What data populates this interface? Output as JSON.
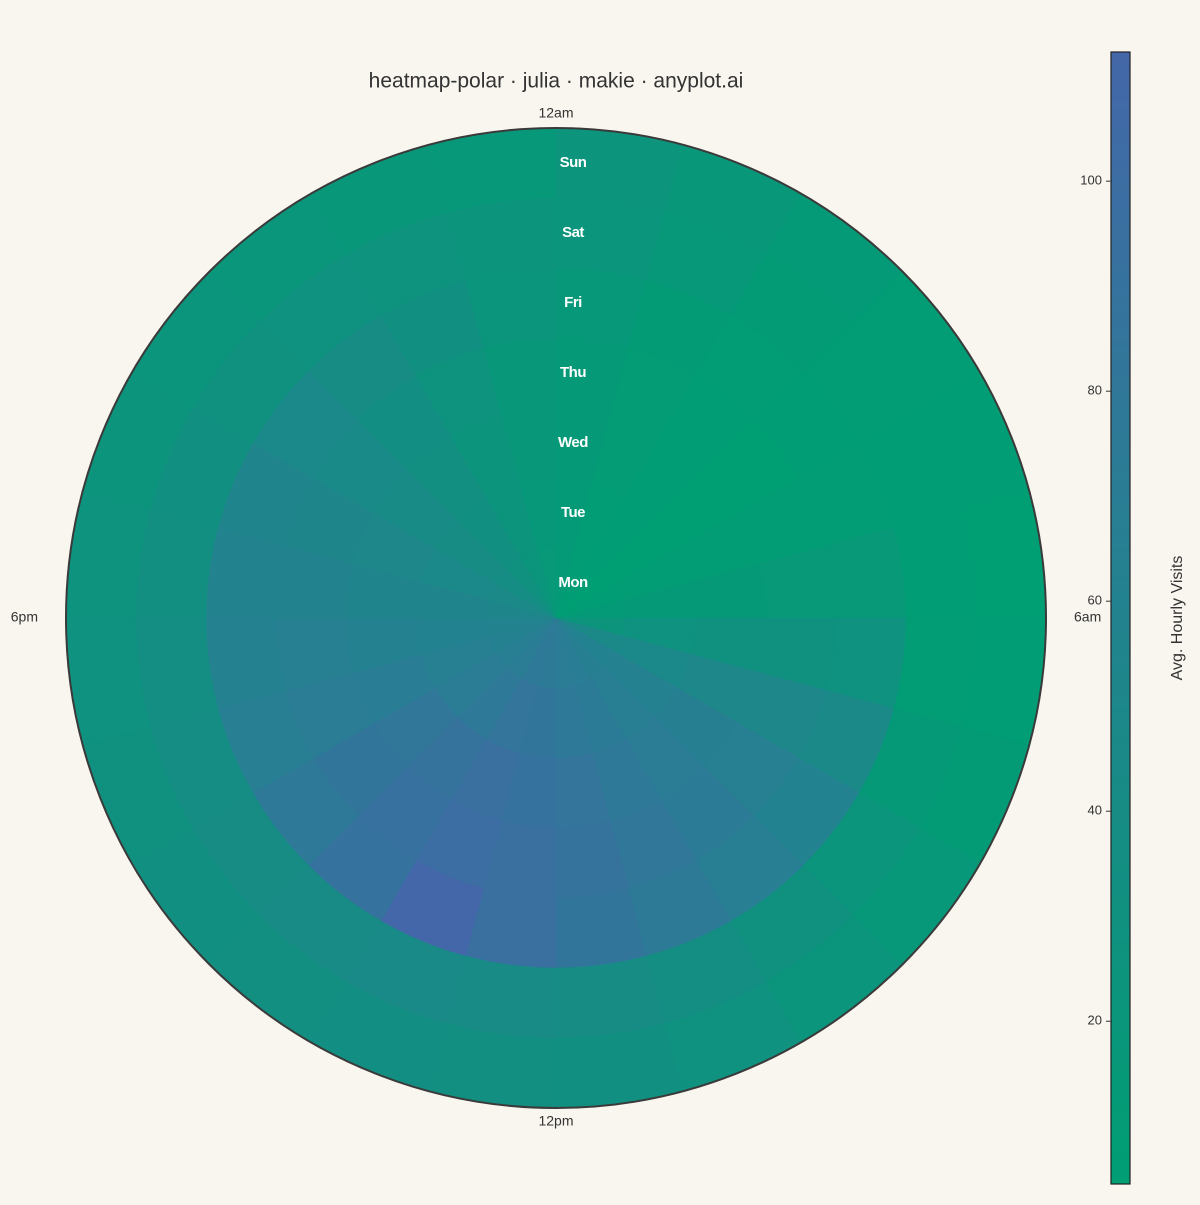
{
  "chart_data": {
    "type": "heatmap-polar",
    "title": "heatmap-polar · julia · makie · anyplot.ai",
    "categories": [
      "Mon",
      "Tue",
      "Wed",
      "Thu",
      "Fri",
      "Sat",
      "Sun"
    ],
    "xlim": [
      0,
      24
    ],
    "xticks": [
      {
        "value": 0,
        "label": "12am"
      },
      {
        "value": 6,
        "label": "6am"
      },
      {
        "value": 12,
        "label": "12pm"
      },
      {
        "value": 18,
        "label": "6pm"
      }
    ],
    "values": [
      [
        12,
        8,
        6,
        5,
        6,
        12,
        25,
        45,
        60,
        65,
        70,
        72,
        75,
        78,
        72,
        68,
        62,
        58,
        52,
        45,
        38,
        30,
        22,
        15
      ],
      [
        12,
        8,
        6,
        5,
        7,
        14,
        28,
        48,
        62,
        68,
        74,
        78,
        82,
        85,
        78,
        72,
        66,
        60,
        55,
        48,
        40,
        32,
        24,
        16
      ],
      [
        14,
        9,
        6,
        5,
        7,
        14,
        30,
        50,
        65,
        72,
        78,
        85,
        90,
        95,
        88,
        80,
        70,
        62,
        56,
        50,
        42,
        34,
        25,
        18
      ],
      [
        14,
        9,
        6,
        5,
        7,
        15,
        30,
        50,
        66,
        74,
        80,
        88,
        95,
        100,
        92,
        82,
        72,
        64,
        58,
        52,
        44,
        35,
        26,
        18
      ],
      [
        16,
        10,
        7,
        6,
        8,
        15,
        28,
        46,
        60,
        68,
        75,
        82,
        95,
        112,
        90,
        78,
        68,
        62,
        58,
        55,
        48,
        40,
        32,
        22
      ],
      [
        22,
        16,
        10,
        7,
        6,
        6,
        8,
        14,
        22,
        30,
        36,
        40,
        42,
        44,
        42,
        40,
        38,
        36,
        34,
        32,
        30,
        28,
        26,
        24
      ],
      [
        24,
        18,
        12,
        8,
        6,
        5,
        6,
        10,
        16,
        22,
        28,
        32,
        34,
        35,
        34,
        32,
        30,
        28,
        26,
        24,
        22,
        20,
        18,
        16
      ]
    ],
    "colormap": [
      "#009E73",
      "#4467A9"
    ],
    "clim": [
      4.5,
      112.3
    ],
    "cticks": [
      20,
      40,
      60,
      80,
      100
    ],
    "colorbar_label": "Avg. Hourly Visits"
  }
}
